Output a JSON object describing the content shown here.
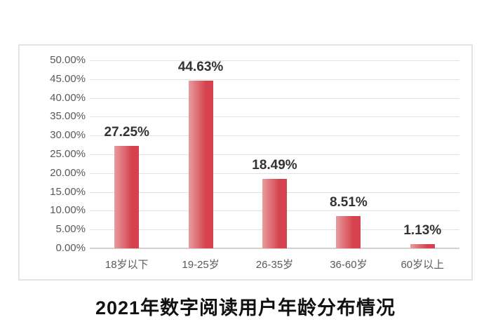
{
  "page": {
    "background_color": "#ffffff",
    "chart_border_color": "#e3e3e3"
  },
  "chart_data": {
    "type": "bar",
    "title": "2021年数字阅读用户年龄分布情况",
    "categories": [
      "18岁以下",
      "19-25岁",
      "26-35岁",
      "36-60岁",
      "60岁以上"
    ],
    "values": [
      27.25,
      44.63,
      18.49,
      8.51,
      1.13
    ],
    "data_labels": [
      "27.25%",
      "44.63%",
      "18.49%",
      "8.51%",
      "1.13%"
    ],
    "xlabel": "",
    "ylabel": "",
    "ylim": [
      0,
      50
    ],
    "ytick_step": 5,
    "ytick_labels": [
      "0.00%",
      "5.00%",
      "10.00%",
      "15.00%",
      "20.00%",
      "25.00%",
      "30.00%",
      "35.00%",
      "40.00%",
      "45.00%",
      "50.00%"
    ],
    "grid": true,
    "legend_position": "none",
    "colors": {
      "bar_gradient_start": "#e79d9e",
      "bar_gradient_end": "#d5424d",
      "gridline": "#e2e2e2",
      "axis_line": "#d2d2d2",
      "tick_text": "#595959",
      "data_label_text": "#333333",
      "title_text": "#111111"
    }
  }
}
